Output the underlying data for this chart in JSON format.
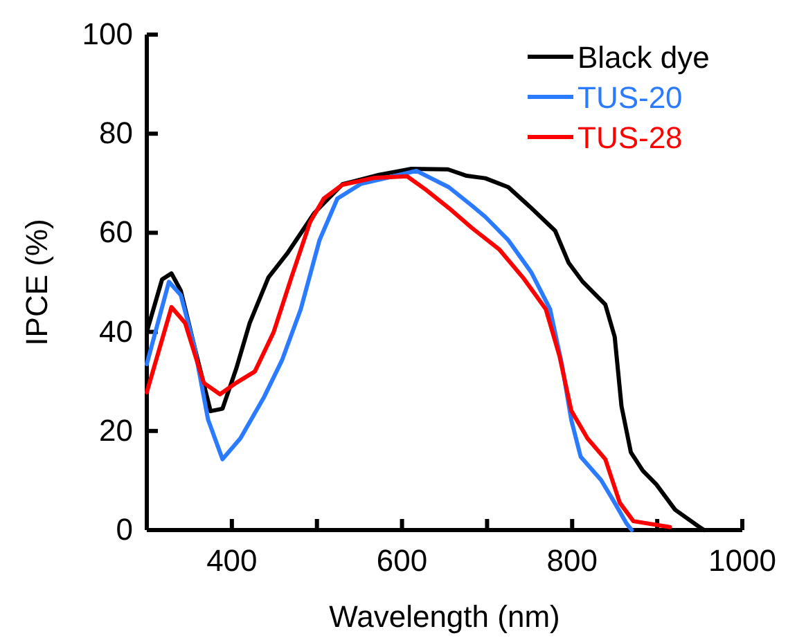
{
  "chart_data": {
    "type": "line",
    "xlabel": "Wavelength (nm)",
    "ylabel": "IPCE (%)",
    "xlim": [
      300,
      1000
    ],
    "xticks": [
      {
        "value": 300,
        "label": null
      },
      400,
      {
        "value": 500,
        "label": null
      },
      600,
      {
        "value": 700,
        "label": null
      },
      800,
      {
        "value": 900,
        "label": null
      },
      1000
    ],
    "ylim": [
      0,
      100
    ],
    "yticks": [
      0,
      20,
      40,
      60,
      80,
      100
    ],
    "grid": false,
    "legend": "top right",
    "line_style": "solid",
    "marker": "none",
    "series": [
      {
        "name": "Black dye",
        "color": "#000000",
        "x": [
          300,
          318,
          329,
          340,
          356,
          375,
          389,
          405,
          421,
          443,
          465,
          497,
          530,
          573,
          611,
          654,
          676,
          698,
          725,
          752,
          780,
          796,
          812,
          839,
          850,
          858,
          869,
          883,
          899,
          921,
          948,
          955
        ],
        "values": [
          40,
          50.6,
          51.8,
          48.3,
          37,
          24,
          24.5,
          32.5,
          41.8,
          51,
          55.8,
          64,
          69.8,
          71.7,
          72.9,
          72.8,
          71.5,
          71,
          69.2,
          65,
          60.4,
          53.9,
          50.2,
          45.5,
          39,
          25,
          15.7,
          12,
          9.2,
          4.1,
          0.8,
          0
        ]
      },
      {
        "name": "TUS-20",
        "color": "#2a7bff",
        "x": [
          300,
          326,
          340,
          356,
          372,
          389,
          410,
          438,
          459,
          481,
          503,
          524,
          552,
          590,
          617,
          655,
          682,
          698,
          725,
          752,
          774,
          788,
          799,
          810,
          834,
          850,
          864,
          870
        ],
        "values": [
          33.5,
          50.1,
          47.4,
          37,
          22.3,
          14.3,
          18.5,
          26.9,
          34.3,
          44.6,
          58.5,
          66.9,
          69.9,
          71.4,
          72.5,
          69.2,
          65.5,
          63.2,
          58.5,
          52,
          44.6,
          33.4,
          22.2,
          14.8,
          10.1,
          5.5,
          1.3,
          0
        ]
      },
      {
        "name": "TUS-28",
        "color": "#ff0000",
        "x": [
          300,
          329,
          345,
          367,
          386,
          405,
          427,
          449,
          470,
          492,
          508,
          530,
          568,
          606,
          628,
          655,
          682,
          714,
          742,
          769,
          785,
          799,
          818,
          839,
          856,
          872,
          915
        ],
        "values": [
          27.8,
          45,
          41.8,
          29.7,
          27.4,
          29.7,
          32,
          39.9,
          51,
          62.2,
          66.9,
          69.7,
          71.1,
          71.4,
          68.7,
          65,
          61,
          56.7,
          51,
          44.6,
          35.2,
          24.1,
          18.5,
          14.3,
          5.5,
          1.8,
          0.6
        ]
      }
    ]
  }
}
